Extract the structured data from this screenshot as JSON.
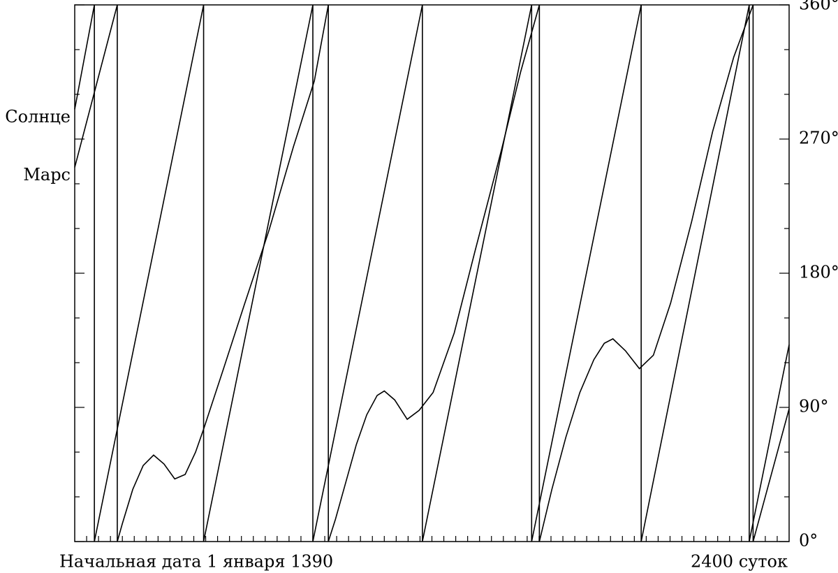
{
  "chart_data": {
    "type": "line",
    "xlim": [
      0,
      2400
    ],
    "ylim": [
      0,
      360
    ],
    "yticks": [
      {
        "value": 0,
        "label": "0°"
      },
      {
        "value": 90,
        "label": "90°"
      },
      {
        "value": 180,
        "label": "180°"
      },
      {
        "value": 270,
        "label": "270°"
      },
      {
        "value": 360,
        "label": "360°"
      }
    ],
    "yminor_ticks": [
      30,
      60,
      120,
      150,
      210,
      240,
      300,
      330
    ],
    "xminor_ticks": [
      40,
      80,
      120,
      160,
      200,
      240,
      280,
      320,
      360,
      400,
      440,
      480,
      520,
      560,
      600,
      640,
      680,
      720,
      760,
      800,
      840,
      880,
      920,
      960,
      1000,
      1040,
      1080,
      1120,
      1160,
      1200,
      1240,
      1280,
      1320,
      1360,
      1400,
      1440,
      1480,
      1520,
      1560,
      1600,
      1640,
      1680,
      1720,
      1760,
      1800,
      1840,
      1880,
      1920,
      1960,
      2000,
      2040,
      2080,
      2120,
      2160,
      2200,
      2240,
      2280,
      2320,
      2360
    ],
    "x_start_label": "Начальная дата 1 января 1390",
    "x_end_label": "2400 суток",
    "series": [
      {
        "name": "Солнце",
        "color": "#000000",
        "x": [
          0,
          66,
          66,
          433,
          433,
          800,
          800,
          1168,
          1168,
          1535,
          1535,
          1903,
          1903,
          2266,
          2266,
          2400
        ],
        "values": [
          290,
          360,
          0,
          360,
          0,
          360,
          0,
          360,
          0,
          360,
          0,
          360,
          0,
          360,
          0,
          132
        ]
      },
      {
        "name": "Марс",
        "color": "#000000",
        "x": [
          0,
          143,
          143,
          160,
          195,
          230,
          265,
          300,
          336,
          371,
          406,
          434,
          500,
          570,
          653,
          735,
          805,
          852,
          852,
          876,
          911,
          946,
          981,
          1016,
          1040,
          1075,
          1117,
          1157,
          1204,
          1275,
          1345,
          1434,
          1498,
          1561,
          1561,
          1603,
          1650,
          1697,
          1744,
          1779,
          1808,
          1850,
          1897,
          1944,
          2002,
          2073,
          2143,
          2214,
          2279,
          2279,
          2400
        ],
        "values": [
          251,
          360,
          0,
          12,
          35,
          51,
          58,
          52,
          42,
          45,
          60,
          76,
          116,
          159,
          209,
          265,
          309,
          360,
          0,
          15,
          40,
          65,
          85,
          98,
          101,
          95,
          82,
          88,
          100,
          140,
          195,
          263,
          315,
          360,
          0,
          35,
          70,
          100,
          122,
          133,
          136,
          128,
          116,
          125,
          160,
          215,
          275,
          325,
          360,
          0,
          89
        ]
      }
    ]
  }
}
